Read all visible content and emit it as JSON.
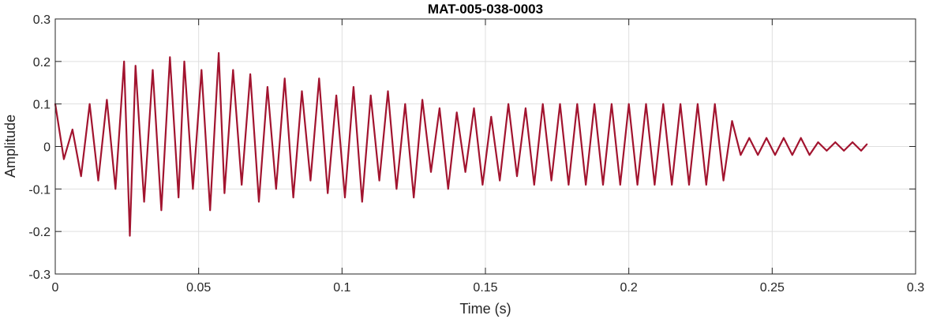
{
  "chart_data": {
    "type": "line",
    "title": "MAT-005-038-0003",
    "xlabel": "Time (s)",
    "ylabel": "Amplitude",
    "xlim": [
      0,
      0.3
    ],
    "ylim": [
      -0.3,
      0.3
    ],
    "xticks": [
      0,
      0.05,
      0.1,
      0.15,
      0.2,
      0.25,
      0.3
    ],
    "xtick_labels": [
      "0",
      "0.05",
      "0.1",
      "0.15",
      "0.2",
      "0.25",
      "0.3"
    ],
    "yticks": [
      -0.3,
      -0.2,
      -0.1,
      0,
      0.1,
      0.2,
      0.3
    ],
    "ytick_labels": [
      "-0.3",
      "-0.2",
      "-0.1",
      "0",
      "0.1",
      "0.2",
      "0.3"
    ],
    "grid": true,
    "line_color": "#A2142F",
    "series": [
      {
        "x": [
          0,
          0.003,
          0.006,
          0.009,
          0.012,
          0.015,
          0.018,
          0.021,
          0.024,
          0.026,
          0.028,
          0.031,
          0.034,
          0.037,
          0.04,
          0.043,
          0.045,
          0.048,
          0.051,
          0.054,
          0.057,
          0.059,
          0.062,
          0.065,
          0.068,
          0.071,
          0.074,
          0.077,
          0.08,
          0.083,
          0.086,
          0.089,
          0.092,
          0.095,
          0.098,
          0.101,
          0.104,
          0.107,
          0.11,
          0.113,
          0.116,
          0.119,
          0.122,
          0.125,
          0.128,
          0.131,
          0.134,
          0.137,
          0.14,
          0.143,
          0.146,
          0.149,
          0.152,
          0.155,
          0.158,
          0.161,
          0.164,
          0.167,
          0.17,
          0.173,
          0.176,
          0.179,
          0.182,
          0.185,
          0.188,
          0.191,
          0.194,
          0.197,
          0.2,
          0.203,
          0.206,
          0.209,
          0.212,
          0.215,
          0.218,
          0.221,
          0.224,
          0.227,
          0.23,
          0.233,
          0.236,
          0.239,
          0.242,
          0.245,
          0.248,
          0.251,
          0.254,
          0.257,
          0.26,
          0.263,
          0.266,
          0.269,
          0.272,
          0.275,
          0.278,
          0.281,
          0.283
        ],
        "y": [
          0.1,
          -0.03,
          0.04,
          -0.07,
          0.1,
          -0.08,
          0.11,
          -0.1,
          0.2,
          -0.21,
          0.19,
          -0.13,
          0.18,
          -0.15,
          0.21,
          -0.12,
          0.2,
          -0.1,
          0.18,
          -0.15,
          0.22,
          -0.11,
          0.18,
          -0.09,
          0.17,
          -0.13,
          0.14,
          -0.1,
          0.16,
          -0.12,
          0.13,
          -0.08,
          0.16,
          -0.11,
          0.12,
          -0.12,
          0.14,
          -0.13,
          0.12,
          -0.08,
          0.13,
          -0.1,
          0.1,
          -0.12,
          0.11,
          -0.06,
          0.09,
          -0.1,
          0.08,
          -0.06,
          0.09,
          -0.09,
          0.07,
          -0.08,
          0.1,
          -0.07,
          0.09,
          -0.09,
          0.1,
          -0.08,
          0.1,
          -0.09,
          0.1,
          -0.09,
          0.1,
          -0.09,
          0.1,
          -0.09,
          0.1,
          -0.09,
          0.1,
          -0.09,
          0.1,
          -0.09,
          0.1,
          -0.09,
          0.1,
          -0.09,
          0.1,
          -0.08,
          0.06,
          -0.02,
          0.02,
          -0.02,
          0.02,
          -0.02,
          0.02,
          -0.02,
          0.02,
          -0.02,
          0.01,
          -0.01,
          0.01,
          -0.01,
          0.01,
          -0.01,
          0.005
        ]
      }
    ]
  }
}
